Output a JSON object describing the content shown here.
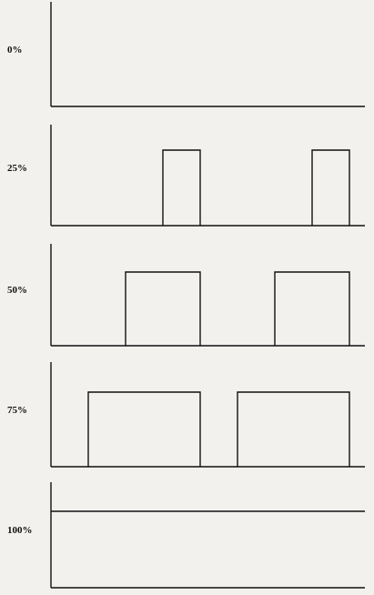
{
  "panels": [
    {
      "label": "0%",
      "duty": 0.0
    },
    {
      "label": "25%",
      "duty": 0.25
    },
    {
      "label": "50%",
      "duty": 0.5
    },
    {
      "label": "75%",
      "duty": 0.75
    },
    {
      "label": "100%",
      "duty": 1.0
    }
  ],
  "colors": {
    "line": "#111111",
    "background": "#f2f1ee"
  }
}
